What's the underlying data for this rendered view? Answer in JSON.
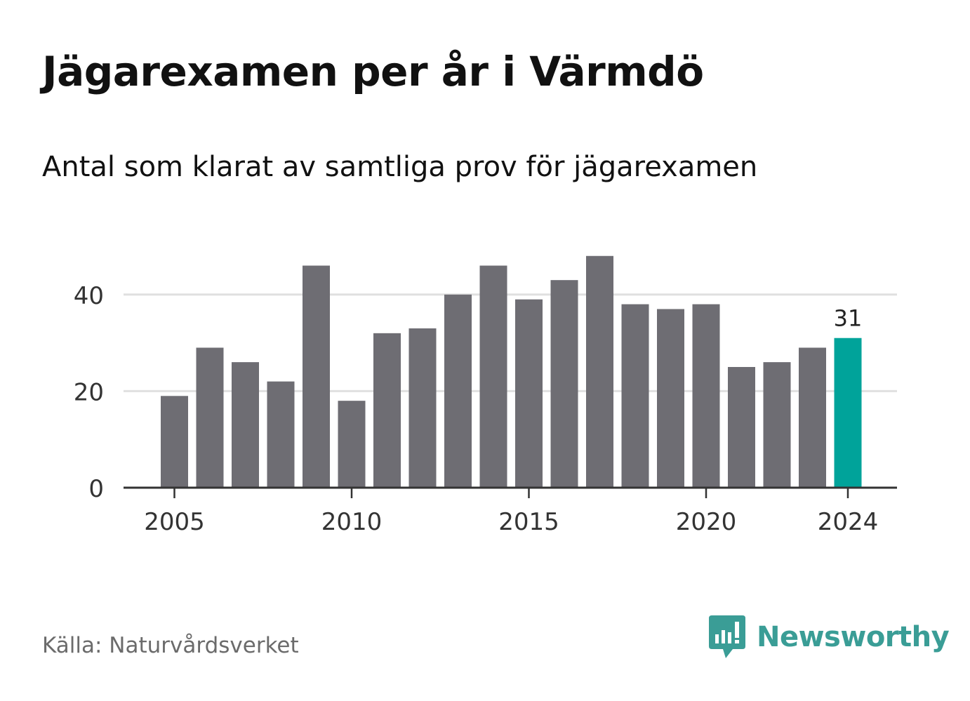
{
  "header": {
    "title": "Jägarexamen per år i Värmdö",
    "subtitle": "Antal som klarat av samtliga prov för jägarexamen"
  },
  "footer": {
    "source": "Källa: Naturvårdsverket",
    "brand": "Newsworthy"
  },
  "colors": {
    "bar": "#6e6d73",
    "highlight": "#00a39a",
    "gridline": "#e0e0e0",
    "axis": "#333333",
    "brand": "#3a9d96"
  },
  "icons": {
    "brand_logo": "newsworthy-logo-icon"
  },
  "chart_data": {
    "type": "bar",
    "x": [
      2005,
      2006,
      2007,
      2008,
      2009,
      2010,
      2011,
      2012,
      2013,
      2014,
      2015,
      2016,
      2017,
      2018,
      2019,
      2020,
      2021,
      2022,
      2023,
      2024
    ],
    "values": [
      19,
      29,
      26,
      22,
      46,
      18,
      32,
      33,
      40,
      46,
      39,
      43,
      48,
      38,
      37,
      38,
      25,
      26,
      29,
      31
    ],
    "highlight_index": 19,
    "data_labels": [
      {
        "index": 19,
        "text": "31"
      }
    ],
    "ylim": [
      0,
      50
    ],
    "y_ticks": [
      0,
      20,
      40
    ],
    "y_tick_labels": [
      "0",
      "20",
      "40"
    ],
    "x_ticks": [
      2005,
      2010,
      2015,
      2020,
      2024
    ],
    "x_tick_labels": [
      "2005",
      "2010",
      "2015",
      "2020",
      "2024"
    ],
    "grid": true,
    "title": "",
    "xlabel": "",
    "ylabel": ""
  }
}
